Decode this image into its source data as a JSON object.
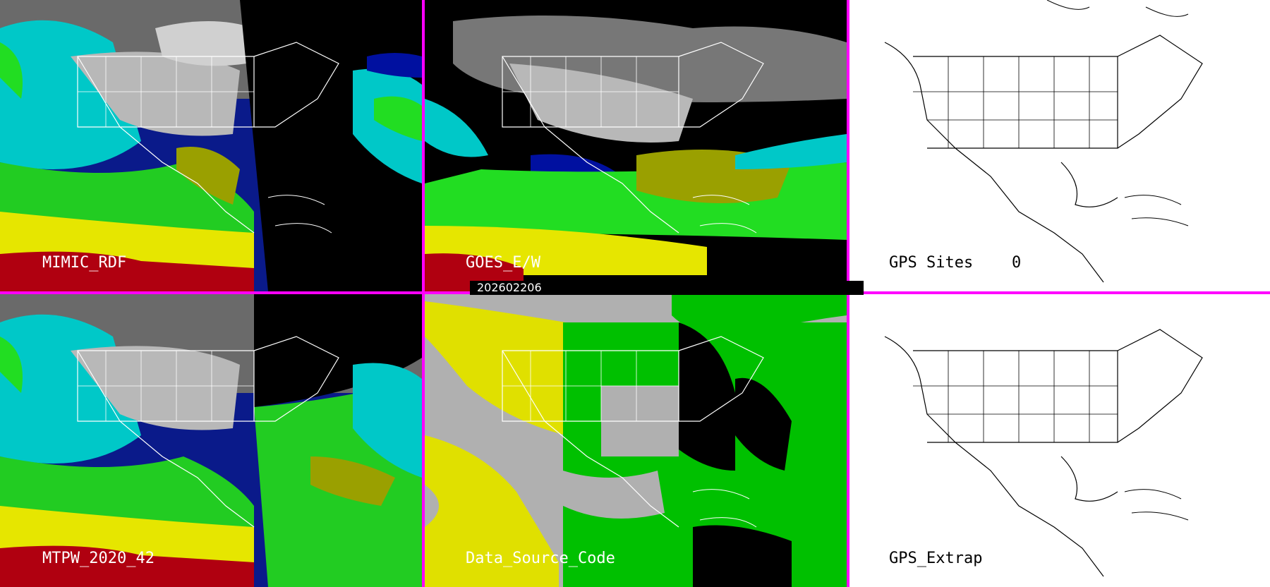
{
  "colors": {
    "divider": "#ff00ff",
    "ocean_red": "#b00010",
    "yellow": "#e6e600",
    "green": "#22dd22",
    "cyan": "#00d8d8",
    "blue": "#0010a0",
    "gray_cloud": "#b8b8b8",
    "source_gray": "#b0b0b0",
    "source_yellow": "#e0e000",
    "source_green": "#00c000"
  },
  "panels": [
    {
      "id": "mimic-rdf",
      "label": "MIMIC_RDF",
      "style": "tpw"
    },
    {
      "id": "goes-ew",
      "label": "GOES_E/W",
      "style": "goes"
    },
    {
      "id": "gps-sites",
      "label": "GPS Sites",
      "count": "0",
      "style": "outline"
    },
    {
      "id": "mtpw",
      "label": "MTPW_2020_42",
      "style": "tpw"
    },
    {
      "id": "data-source-code",
      "label": "Data_Source_Code",
      "style": "source"
    },
    {
      "id": "gps-extrap",
      "label": "GPS_Extrap",
      "style": "outline"
    }
  ],
  "timestamp": "202602206"
}
